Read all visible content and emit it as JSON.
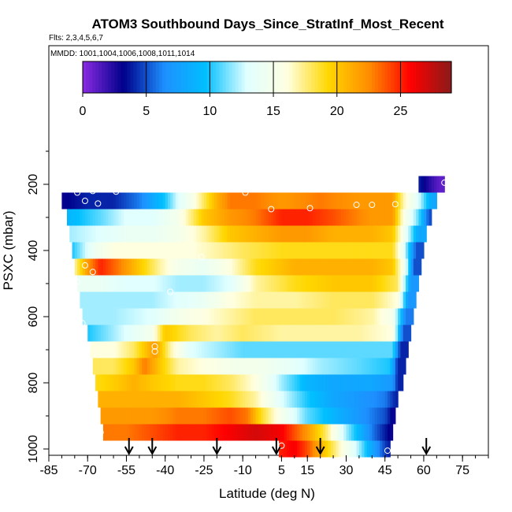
{
  "chart_data": {
    "type": "heatmap",
    "title": "ATOM3 Southbound Days_Since_StratInf_Most_Recent",
    "subtitle": "Flts: 2,3,4,5,6,7",
    "annotation": "MMDD: 1001,1004,1006,1008,1011,1014",
    "xlabel": "Latitude (deg N)",
    "ylabel": "PSXC (mbar)",
    "xlim": [
      -85,
      85
    ],
    "ylim": [
      1010,
      40
    ],
    "y_reversed": true,
    "grid": false,
    "x_ticks": [
      -85,
      -70,
      -55,
      -40,
      -25,
      -10,
      5,
      15,
      30,
      45,
      60,
      75
    ],
    "x_tick_labels": [
      "-85",
      "-70",
      "-55",
      "-40",
      "-25",
      "-10",
      "5",
      "15",
      "30",
      "45",
      "60",
      "75"
    ],
    "y_ticks": [
      200,
      400,
      600,
      800,
      1000
    ],
    "y_tick_labels": [
      "200",
      "400",
      "600",
      "800",
      "1000"
    ],
    "colorbar": {
      "range": [
        0,
        29
      ],
      "ticks": [
        0,
        5,
        10,
        15,
        20,
        25
      ],
      "tick_labels": [
        "0",
        "5",
        "10",
        "15",
        "20",
        "25"
      ],
      "placement": "top",
      "colors": [
        "#8a2be2",
        "#00008b",
        "#1e90ff",
        "#00bfff",
        "#e0ffff",
        "#ffffe0",
        "#ffd700",
        "#ff8c00",
        "#ff0000",
        "#8b1a1a"
      ]
    },
    "layers": [
      {
        "p": 200,
        "lat0": 58,
        "lat1": 68,
        "x": [
          -16,
          -5,
          5,
          15,
          25,
          35,
          45,
          52,
          58,
          63,
          66
        ],
        "v": [
          21,
          22,
          22,
          21,
          18,
          15,
          12,
          8,
          4,
          2,
          1
        ]
      },
      {
        "p": 250,
        "lat0": -80,
        "lat1": 65,
        "x": [
          -80,
          -70,
          -60,
          -50,
          -45,
          -40,
          -35,
          -30,
          -25,
          -20,
          -15,
          -5,
          5,
          20,
          35,
          48,
          52,
          58,
          63
        ],
        "v": [
          3,
          4,
          4,
          6,
          8,
          10,
          13,
          15,
          18,
          21,
          23,
          23,
          22,
          23,
          22,
          22,
          17,
          13,
          8
        ]
      },
      {
        "p": 300,
        "lat0": -78,
        "lat1": 63,
        "x": [
          -78,
          -65,
          -55,
          -45,
          -35,
          -25,
          -15,
          -5,
          5,
          15,
          25,
          40,
          48,
          52,
          58,
          62
        ],
        "v": [
          9,
          11,
          13,
          13,
          15,
          20,
          22,
          23,
          25,
          25,
          24,
          22,
          22,
          16,
          11,
          5
        ]
      },
      {
        "p": 350,
        "lat0": -77,
        "lat1": 61,
        "x": [
          -77,
          -65,
          -55,
          -45,
          -35,
          -25,
          -15,
          -5,
          5,
          15,
          25,
          40,
          48,
          52,
          58
        ],
        "v": [
          12,
          13,
          14,
          14,
          15,
          17,
          20,
          21,
          22,
          22,
          21,
          21,
          20,
          15,
          8
        ]
      },
      {
        "p": 400,
        "lat0": -76,
        "lat1": 60,
        "x": [
          -76,
          -68,
          -60,
          -50,
          -40,
          -30,
          -20,
          -10,
          5,
          20,
          35,
          48,
          52,
          57
        ],
        "v": [
          10,
          14,
          16,
          16,
          16,
          16,
          17,
          18,
          19,
          19,
          19,
          19,
          14,
          5
        ]
      },
      {
        "p": 450,
        "lat0": -75,
        "lat1": 59,
        "x": [
          -75,
          -70,
          -65,
          -58,
          -50,
          -42,
          -35,
          -25,
          -15,
          -5,
          10,
          25,
          40,
          48,
          53,
          56
        ],
        "v": [
          17,
          22,
          25,
          23,
          20,
          17,
          15,
          14,
          16,
          19,
          21,
          21,
          21,
          20,
          14,
          5
        ]
      },
      {
        "p": 500,
        "lat0": -74,
        "lat1": 58,
        "x": [
          -74,
          -65,
          -55,
          -45,
          -35,
          -25,
          -15,
          -5,
          10,
          25,
          40,
          50,
          55
        ],
        "v": [
          14,
          14,
          13,
          13,
          12,
          12,
          13,
          17,
          19,
          20,
          20,
          18,
          7
        ]
      },
      {
        "p": 550,
        "lat0": -73,
        "lat1": 57,
        "x": [
          -73,
          -60,
          -45,
          -35,
          -25,
          -15,
          -5,
          10,
          25,
          40,
          50,
          54
        ],
        "v": [
          12,
          12,
          12,
          13,
          14,
          16,
          17,
          17,
          18,
          18,
          16,
          7
        ]
      },
      {
        "p": 600,
        "lat0": -72,
        "lat1": 56,
        "x": [
          -72,
          -60,
          -45,
          -35,
          -25,
          -15,
          -5,
          10,
          25,
          40,
          48,
          53
        ],
        "v": [
          12,
          12,
          13,
          15,
          16,
          17,
          18,
          18,
          18,
          17,
          15,
          6
        ]
      },
      {
        "p": 650,
        "lat0": -70,
        "lat1": 55,
        "x": [
          -70,
          -60,
          -50,
          -45,
          -40,
          -30,
          -20,
          -10,
          5,
          20,
          35,
          48,
          52
        ],
        "v": [
          10,
          12,
          14,
          15,
          20,
          18,
          17,
          18,
          17,
          17,
          17,
          16,
          5
        ]
      },
      {
        "p": 700,
        "lat0": -69,
        "lat1": 54,
        "x": [
          -69,
          -60,
          -52,
          -48,
          -44,
          -38,
          -30,
          -20,
          -10,
          5,
          20,
          35,
          48,
          51
        ],
        "v": [
          16,
          16,
          18,
          20,
          22,
          17,
          13,
          12,
          11,
          11,
          11,
          11,
          11,
          4
        ]
      },
      {
        "p": 750,
        "lat0": -68,
        "lat1": 53,
        "x": [
          -68,
          -60,
          -52,
          -48,
          -42,
          -35,
          -25,
          -15,
          -5,
          5,
          20,
          35,
          47,
          50
        ],
        "v": [
          18,
          18,
          20,
          23,
          20,
          17,
          16,
          15,
          15,
          14,
          12,
          11,
          10,
          4
        ]
      },
      {
        "p": 800,
        "lat0": -67,
        "lat1": 52,
        "x": [
          -67,
          -58,
          -52,
          -45,
          -35,
          -25,
          -15,
          -5,
          5,
          15,
          25,
          40,
          48,
          50
        ],
        "v": [
          19,
          20,
          21,
          20,
          19,
          19,
          18,
          16,
          12,
          9,
          8,
          8,
          7,
          4
        ]
      },
      {
        "p": 850,
        "lat0": -66,
        "lat1": 50,
        "x": [
          -66,
          -55,
          -45,
          -35,
          -25,
          -15,
          -5,
          5,
          15,
          25,
          35,
          45,
          49
        ],
        "v": [
          21,
          21,
          21,
          21,
          20,
          19,
          17,
          13,
          10,
          8,
          7,
          6,
          4
        ]
      },
      {
        "p": 900,
        "lat0": -65,
        "lat1": 49,
        "x": [
          -65,
          -55,
          -45,
          -35,
          -25,
          -15,
          -8,
          -3,
          5,
          15,
          25,
          35,
          45,
          48
        ],
        "v": [
          22,
          22,
          22,
          23,
          23,
          24,
          23,
          19,
          15,
          11,
          9,
          7,
          5,
          3
        ]
      },
      {
        "p": 950,
        "lat0": -64,
        "lat1": 48,
        "x": [
          -64,
          -55,
          -45,
          -35,
          -25,
          -15,
          -5,
          5,
          15,
          22,
          30,
          40,
          47
        ],
        "v": [
          23,
          23,
          24,
          25,
          25,
          26,
          27,
          26,
          22,
          18,
          12,
          6,
          3
        ]
      },
      {
        "p": 1000,
        "lat0": 4,
        "lat1": 47,
        "x": [
          4,
          10,
          15,
          20,
          25,
          30,
          35,
          40,
          46
        ],
        "v": [
          25,
          26,
          24,
          21,
          18,
          15,
          12,
          8,
          4
        ]
      }
    ],
    "markers": [
      {
        "lat": -82,
        "p": 225
      },
      {
        "lat": -74,
        "p": 225
      },
      {
        "lat": -71,
        "p": 250
      },
      {
        "lat": -68,
        "p": 220
      },
      {
        "lat": -66,
        "p": 258
      },
      {
        "lat": -59,
        "p": 222
      },
      {
        "lat": -15,
        "p": 195
      },
      {
        "lat": -9,
        "p": 225
      },
      {
        "lat": 1,
        "p": 275
      },
      {
        "lat": 16,
        "p": 272
      },
      {
        "lat": 34,
        "p": 262
      },
      {
        "lat": 40,
        "p": 262
      },
      {
        "lat": 49,
        "p": 260
      },
      {
        "lat": 68,
        "p": 195
      },
      {
        "lat": -26,
        "p": 420
      },
      {
        "lat": -71,
        "p": 445
      },
      {
        "lat": -68,
        "p": 465
      },
      {
        "lat": -74,
        "p": 495
      },
      {
        "lat": -38,
        "p": 525
      },
      {
        "lat": -72,
        "p": 620
      },
      {
        "lat": -44,
        "p": 690
      },
      {
        "lat": -44,
        "p": 705
      },
      {
        "lat": -65,
        "p": 950
      },
      {
        "lat": 5,
        "p": 990
      },
      {
        "lat": 46,
        "p": 1005
      }
    ],
    "arrows_lat": [
      -54,
      -45,
      -20,
      3,
      20,
      61
    ]
  }
}
